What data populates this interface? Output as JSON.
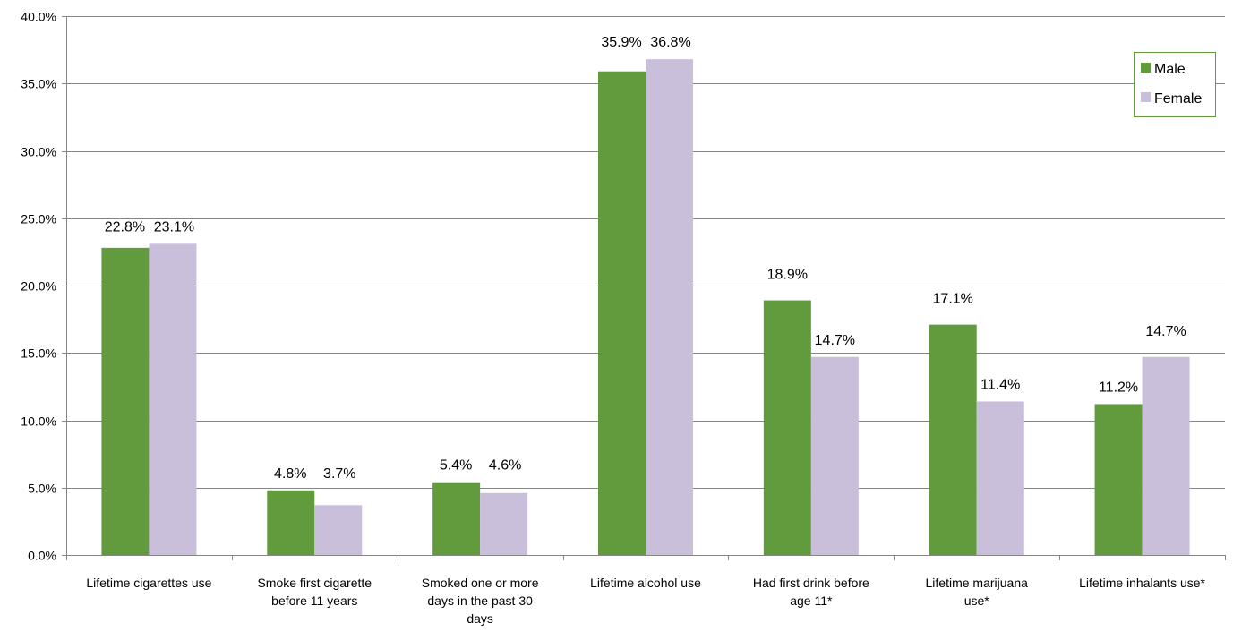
{
  "chart_data": {
    "type": "bar",
    "categories": [
      [
        "Lifetime cigarettes use"
      ],
      [
        "Smoke first cigarette",
        "before 11 years"
      ],
      [
        "Smoked one or more",
        "days in the past 30",
        "days"
      ],
      [
        "Lifetime alcohol use"
      ],
      [
        "Had first drink before",
        "age 11*"
      ],
      [
        "Lifetime marijuana",
        "use*"
      ],
      [
        "Lifetime inhalants  use*"
      ]
    ],
    "series": [
      {
        "name": "Male",
        "color": "#629a3e",
        "values": [
          22.8,
          4.8,
          5.4,
          35.9,
          18.9,
          17.1,
          11.2
        ],
        "labels": [
          "22.8%",
          "4.8%",
          "5.4%",
          "35.9%",
          "18.9%",
          "17.1%",
          "11.2%"
        ]
      },
      {
        "name": "Female",
        "color": "#c9bfda",
        "values": [
          23.1,
          3.7,
          4.6,
          36.8,
          14.7,
          11.4,
          14.7
        ],
        "labels": [
          "23.1%",
          "3.7%",
          "4.6%",
          "36.8%",
          "14.7%",
          "11.4%",
          "14.7%"
        ]
      }
    ],
    "ylim": [
      0,
      40
    ],
    "yticks": [
      {
        "value": 0,
        "label": "0.0%"
      },
      {
        "value": 5,
        "label": "5.0%"
      },
      {
        "value": 10,
        "label": "10.0%"
      },
      {
        "value": 15,
        "label": "15.0%"
      },
      {
        "value": 20,
        "label": "20.0%"
      },
      {
        "value": 25,
        "label": "25.0%"
      },
      {
        "value": 30,
        "label": "30.0%"
      },
      {
        "value": 35,
        "label": "35.0%"
      },
      {
        "value": 40,
        "label": "40.0%"
      }
    ],
    "grid": true,
    "legend_position": "top-right",
    "legend_border_color": "#629a3e",
    "title": "",
    "xlabel": "",
    "ylabel": ""
  }
}
